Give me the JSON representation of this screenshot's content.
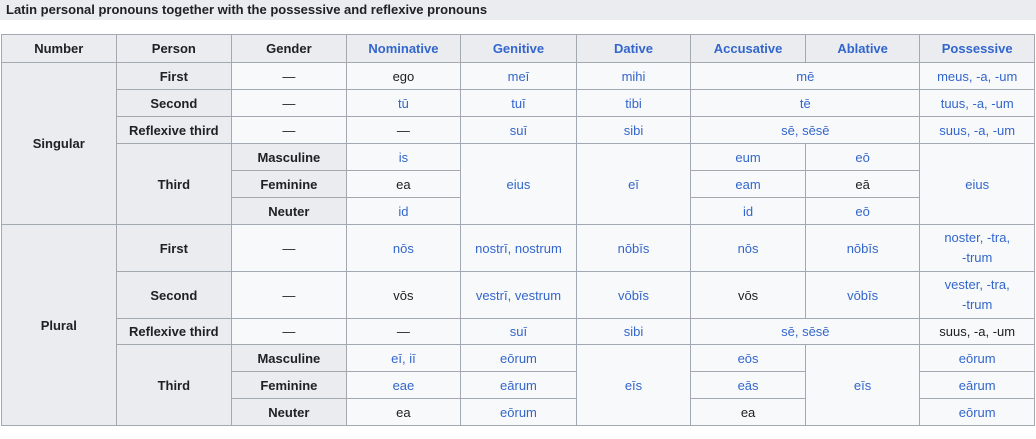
{
  "caption": "Latin personal pronouns together with the possessive and reflexive pronouns",
  "headers": [
    "Number",
    "Person",
    "Gender",
    "Nominative",
    "Genitive",
    "Dative",
    "Accusative",
    "Ablative",
    "Possessive"
  ],
  "singular": {
    "number": "Singular",
    "first": {
      "person": "First",
      "gender": "—",
      "nom": "ego",
      "gen": "meī",
      "dat": "mihi",
      "accabl": "mē",
      "poss": "meus, -a, -um"
    },
    "second": {
      "person": "Second",
      "gender": "—",
      "nom": "tū",
      "gen": "tuī",
      "dat": "tibi",
      "accabl": "tē",
      "poss": "tuus, -a, -um"
    },
    "reflexive": {
      "person": "Reflexive third",
      "gender": "—",
      "nom": "—",
      "gen": "suī",
      "dat": "sibi",
      "accabl": "sē, sēsē",
      "poss": "suus, -a, -um"
    },
    "third": {
      "person": "Third",
      "gen": "eius",
      "dat": "eī",
      "poss": "eius",
      "masc": {
        "gender": "Masculine",
        "nom": "is",
        "acc": "eum",
        "abl": "eō"
      },
      "fem": {
        "gender": "Feminine",
        "nom": "ea",
        "acc": "eam",
        "abl": "eā"
      },
      "neut": {
        "gender": "Neuter",
        "nom": "id",
        "acc": "id",
        "abl": "eō"
      }
    }
  },
  "plural": {
    "number": "Plural",
    "first": {
      "person": "First",
      "gender": "—",
      "nom": "nōs",
      "gen": "nostrī, nostrum",
      "dat": "nōbīs",
      "acc": "nōs",
      "abl": "nōbīs",
      "poss1": "noster, -tra,",
      "poss2": "-trum"
    },
    "second": {
      "person": "Second",
      "gender": "—",
      "nom": "vōs",
      "gen": "vestrī, vestrum",
      "dat": "vōbīs",
      "acc": "vōs",
      "abl": "vōbīs",
      "poss1": "vester, -tra,",
      "poss2": "-trum"
    },
    "reflexive": {
      "person": "Reflexive third",
      "gender": "—",
      "nom": "—",
      "gen": "suī",
      "dat": "sibi",
      "accabl": "sē, sēsē",
      "poss": "suus, -a, -um"
    },
    "third": {
      "person": "Third",
      "dat": "eīs",
      "abl": "eīs",
      "masc": {
        "gender": "Masculine",
        "nom": "eī, iī",
        "gen": "eōrum",
        "acc": "eōs",
        "poss": "eōrum"
      },
      "fem": {
        "gender": "Feminine",
        "nom": "eae",
        "gen": "eārum",
        "acc": "eās",
        "poss": "eārum"
      },
      "neut": {
        "gender": "Neuter",
        "nom": "ea",
        "gen": "eōrum",
        "acc": "ea",
        "poss": "eōrum"
      }
    }
  }
}
